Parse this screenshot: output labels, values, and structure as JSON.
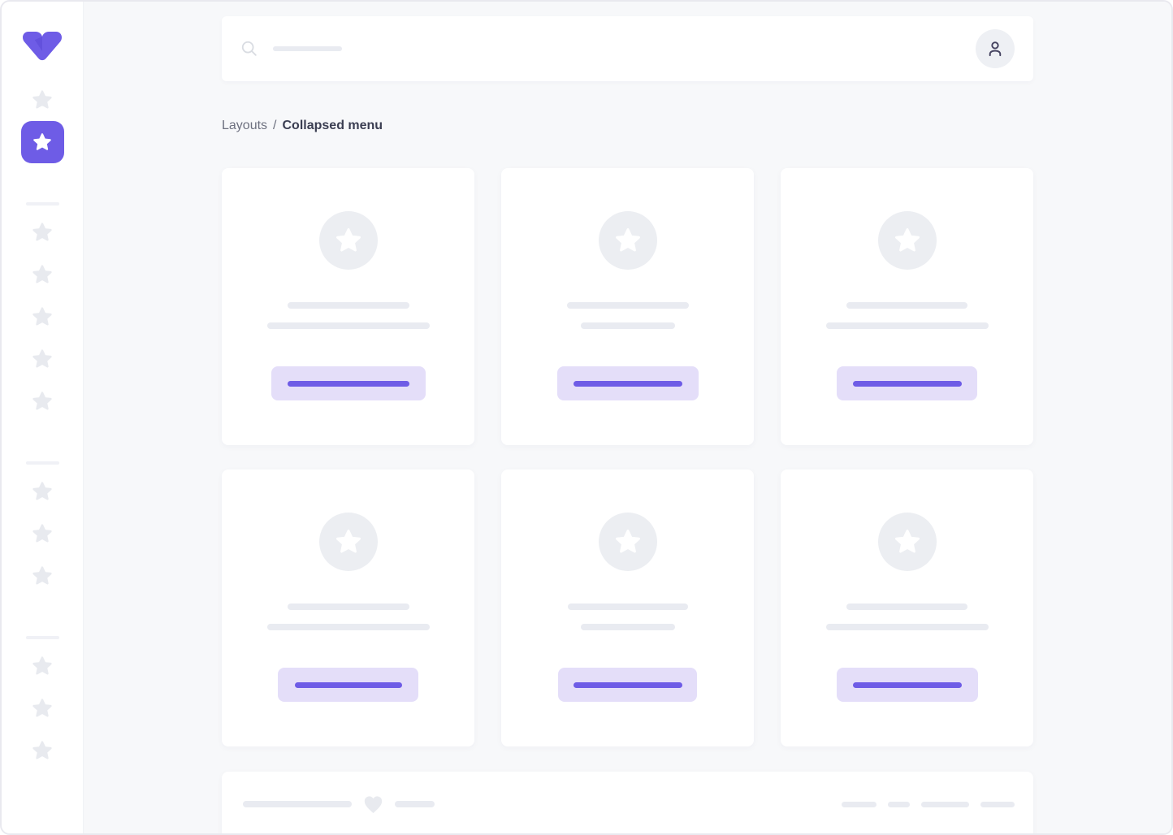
{
  "colors": {
    "primary": "#6e5ce6",
    "primary_dark": "#5b49d6",
    "primary_light": "#e4def9",
    "main_bg": "#f7f8fa",
    "card_bg": "#ffffff",
    "skeleton": "#e9ebf1",
    "skeleton_dark": "#eceef2",
    "icon_muted": "#e8eaef",
    "divider": "#f0f1f6",
    "frame_border": "#e9e9ef",
    "avatar_bg": "#eef0f4",
    "icon_dark": "#454360",
    "search_icon": "#d9dce2",
    "text_muted": "#6d707f",
    "text_strong": "#3b3e52"
  },
  "sidebar": {
    "logo_icon": "vuesax-logo",
    "items_icon": "star-icon",
    "top_items": [
      {
        "icon": "star-icon",
        "active": false
      },
      {
        "icon": "star-icon",
        "active": true
      }
    ],
    "groups": [
      {
        "icon": "star-icon",
        "count": 5
      },
      {
        "icon": "star-icon",
        "count": 3
      },
      {
        "icon": "star-icon",
        "count": 3
      }
    ]
  },
  "header": {
    "search_icon": "search-icon",
    "search_placeholder_text": "",
    "search_placeholder_w": 85,
    "avatar_icon": "user-icon"
  },
  "breadcrumb": {
    "parent": "Layouts",
    "separator": "/",
    "current": "Collapsed menu"
  },
  "cards": [
    {
      "icon": "star-icon",
      "line1_w": 150,
      "line2_w": 200,
      "button_w": 190,
      "button_line_w": 150
    },
    {
      "icon": "star-icon",
      "line1_w": 150,
      "line2_w": 116,
      "button_w": 174,
      "button_line_w": 134
    },
    {
      "icon": "star-icon",
      "line1_w": 149,
      "line2_w": 200,
      "button_w": 173,
      "button_line_w": 134
    },
    {
      "icon": "star-icon",
      "line1_w": 150,
      "line2_w": 200,
      "button_w": 173,
      "button_line_w": 132
    },
    {
      "icon": "star-icon",
      "line1_w": 148,
      "line2_w": 116,
      "button_w": 171,
      "button_line_w": 134
    },
    {
      "icon": "star-icon",
      "line1_w": 149,
      "line2_w": 200,
      "button_w": 174,
      "button_line_w": 134
    }
  ],
  "footer": {
    "line1_w": 134,
    "heart_icon": "heart-icon",
    "line2_w": 49,
    "pill_widths": [
      43,
      27,
      59,
      42
    ]
  }
}
